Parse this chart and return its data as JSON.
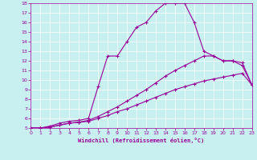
{
  "xlabel": "Windchill (Refroidissement éolien,°C)",
  "background_color": "#c8f0f0",
  "line_color": "#990099",
  "xlim": [
    0,
    23
  ],
  "ylim": [
    5,
    18
  ],
  "xticks": [
    0,
    1,
    2,
    3,
    4,
    5,
    6,
    7,
    8,
    9,
    10,
    11,
    12,
    13,
    14,
    15,
    16,
    17,
    18,
    19,
    20,
    21,
    22,
    23
  ],
  "yticks": [
    5,
    6,
    7,
    8,
    9,
    10,
    11,
    12,
    13,
    14,
    15,
    16,
    17,
    18
  ],
  "line1_x": [
    0,
    1,
    2,
    3,
    4,
    5,
    6,
    7,
    8,
    9,
    10,
    11,
    12,
    13,
    14,
    15,
    16,
    17,
    18,
    19,
    20,
    21,
    22,
    23
  ],
  "line1_y": [
    5.0,
    5.0,
    5.1,
    5.3,
    5.5,
    5.6,
    5.7,
    6.0,
    6.3,
    6.7,
    7.0,
    7.4,
    7.8,
    8.2,
    8.6,
    9.0,
    9.3,
    9.6,
    9.9,
    10.1,
    10.3,
    10.5,
    10.7,
    9.5
  ],
  "line2_x": [
    0,
    1,
    2,
    3,
    4,
    5,
    6,
    7,
    8,
    9,
    10,
    11,
    12,
    13,
    14,
    15,
    16,
    17,
    18,
    19,
    20,
    21,
    22,
    23
  ],
  "line2_y": [
    5.0,
    5.0,
    5.1,
    5.3,
    5.5,
    5.6,
    5.8,
    6.2,
    6.7,
    7.2,
    7.8,
    8.4,
    9.0,
    9.7,
    10.4,
    11.0,
    11.5,
    12.0,
    12.5,
    12.5,
    12.0,
    12.0,
    11.5,
    9.5
  ],
  "line3_x": [
    0,
    1,
    2,
    3,
    4,
    5,
    6,
    7,
    8,
    9,
    10,
    11,
    12,
    13,
    14,
    15,
    16,
    17,
    18,
    19,
    20,
    21,
    22,
    23
  ],
  "line3_y": [
    5.0,
    5.0,
    5.2,
    5.5,
    5.7,
    5.8,
    6.0,
    9.3,
    12.5,
    12.5,
    14.0,
    15.5,
    16.0,
    17.2,
    18.0,
    18.0,
    18.0,
    16.0,
    13.0,
    12.5,
    12.0,
    12.0,
    11.8,
    9.5
  ]
}
